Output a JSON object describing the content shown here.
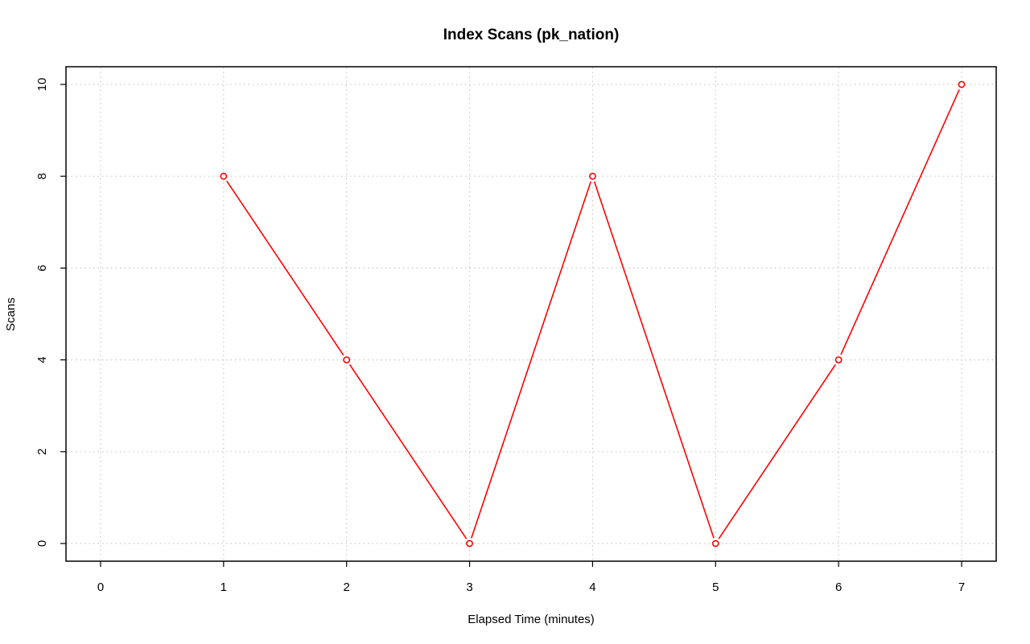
{
  "chart_data": {
    "type": "line",
    "title": "Index Scans (pk_nation)",
    "xlabel": "Elapsed Time (minutes)",
    "ylabel": "Scans",
    "xlim": [
      0,
      7
    ],
    "ylim": [
      0,
      10
    ],
    "x_ticks": [
      0,
      1,
      2,
      3,
      4,
      5,
      6,
      7
    ],
    "y_ticks": [
      0,
      2,
      4,
      6,
      8,
      10
    ],
    "grid": true,
    "series": [
      {
        "color": "#ff0000",
        "x": [
          1,
          2,
          3,
          4,
          5,
          6,
          7
        ],
        "y": [
          8,
          4,
          0,
          8,
          0,
          4,
          10
        ]
      }
    ]
  }
}
